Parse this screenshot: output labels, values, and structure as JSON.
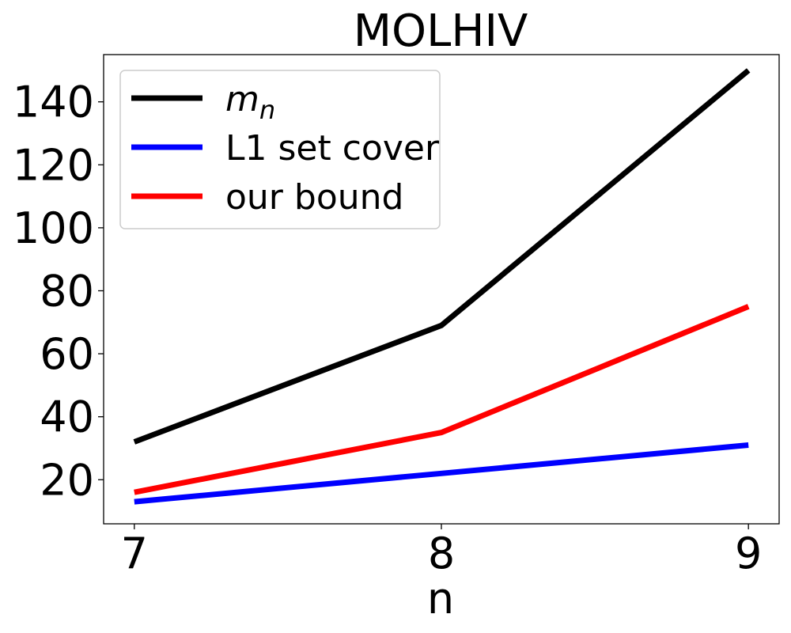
{
  "chart_data": {
    "type": "line",
    "title": "MOLHIV",
    "xlabel": "n",
    "ylabel": "",
    "x": [
      7,
      8,
      9
    ],
    "xlim": [
      6.9,
      9.1
    ],
    "ylim": [
      6,
      155
    ],
    "xticks": [
      7,
      8,
      9
    ],
    "yticks": [
      20,
      40,
      60,
      80,
      100,
      120,
      140
    ],
    "grid": false,
    "legend_position": "top-left",
    "series": [
      {
        "name": "m",
        "name_subscript": "n",
        "color": "#000000",
        "values": [
          32,
          69,
          150
        ]
      },
      {
        "name": "L1 set cover",
        "color": "#0000ff",
        "values": [
          13,
          22,
          31
        ]
      },
      {
        "name": "our bound",
        "color": "#ff0000",
        "values": [
          16,
          35,
          75
        ]
      }
    ]
  }
}
